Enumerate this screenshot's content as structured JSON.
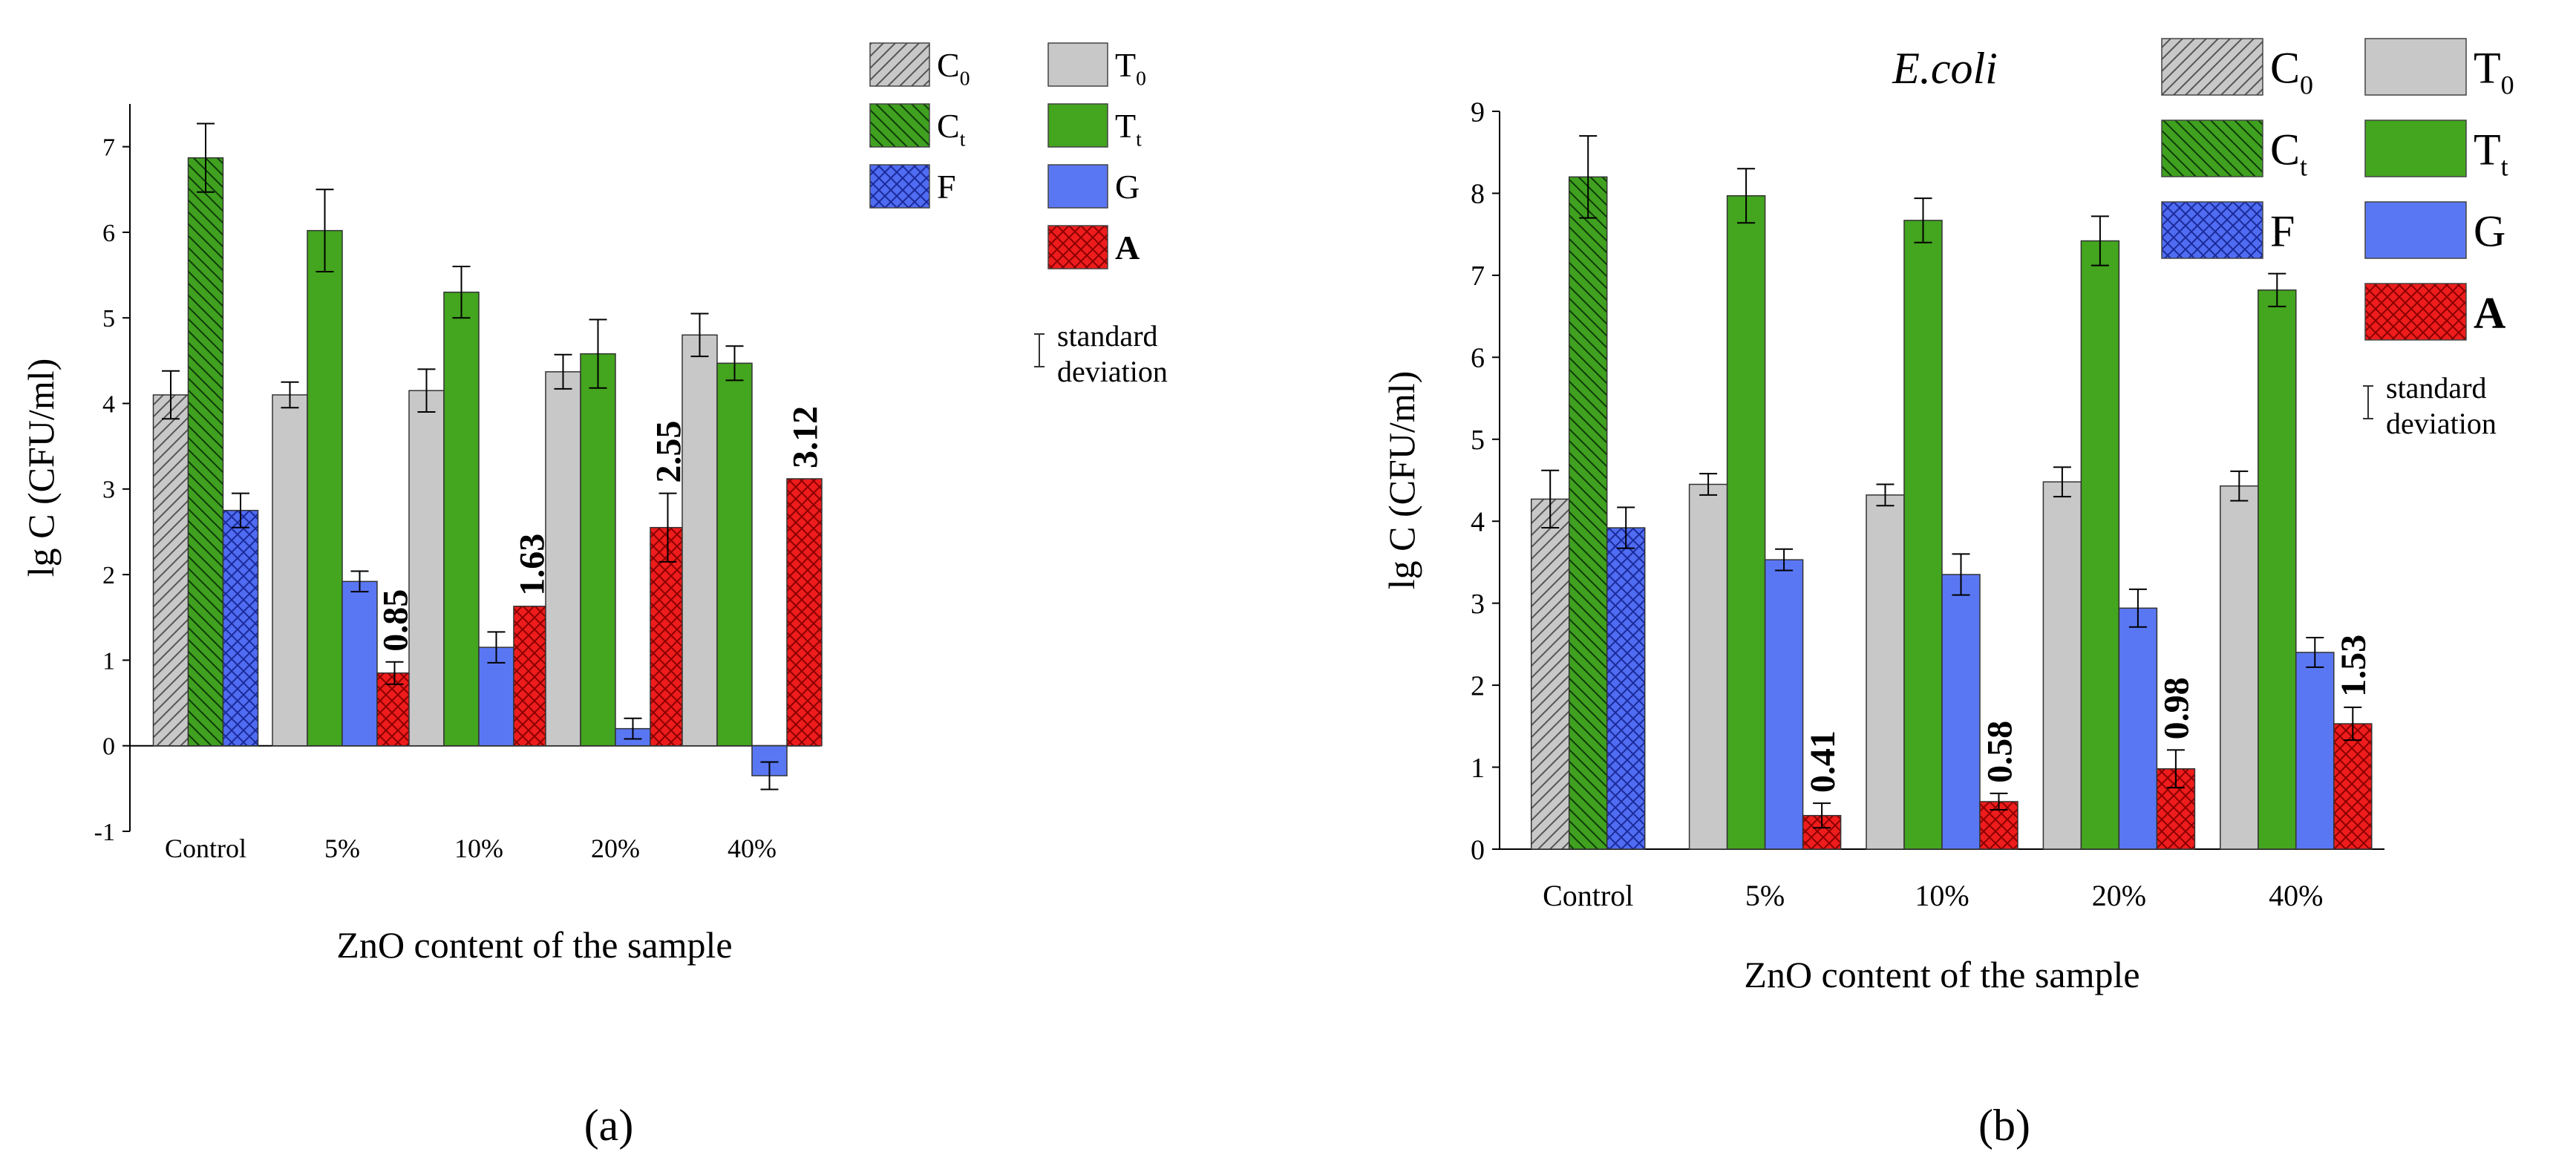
{
  "panels": [
    {
      "panel_label": "(a)",
      "chart_data": {
        "type": "bar",
        "title": "",
        "xlabel": "ZnO content of the sample",
        "ylabel": "lg C (CFU/ml)",
        "ylim": [
          -1,
          7.5
        ],
        "yticks": [
          -1,
          0,
          1,
          2,
          3,
          4,
          5,
          6,
          7
        ],
        "grid": false,
        "legend_position": "top-right",
        "error_bar_label": [
          "standard",
          "deviation"
        ],
        "series_order": [
          "C0",
          "Ct",
          "F",
          "T0",
          "Tt",
          "G",
          "A"
        ],
        "groups": [
          {
            "category": "Control",
            "bars": [
              {
                "series": "C0",
                "value": 4.1,
                "err": 0.28
              },
              {
                "series": "Ct",
                "value": 6.87,
                "err": 0.4
              },
              {
                "series": "F",
                "value": 2.75,
                "err": 0.2
              }
            ]
          },
          {
            "category": "5%",
            "bars": [
              {
                "series": "T0",
                "value": 4.1,
                "err": 0.15
              },
              {
                "series": "Tt",
                "value": 6.02,
                "err": 0.48
              },
              {
                "series": "G",
                "value": 1.92,
                "err": 0.12
              },
              {
                "series": "A",
                "value": 0.85,
                "err": 0.13,
                "label": "0.85"
              }
            ]
          },
          {
            "category": "10%",
            "bars": [
              {
                "series": "T0",
                "value": 4.15,
                "err": 0.25
              },
              {
                "series": "Tt",
                "value": 5.3,
                "err": 0.3
              },
              {
                "series": "G",
                "value": 1.15,
                "err": 0.18
              },
              {
                "series": "A",
                "value": 1.63,
                "err": 0.0,
                "label": "1.63"
              }
            ]
          },
          {
            "category": "20%",
            "bars": [
              {
                "series": "T0",
                "value": 4.37,
                "err": 0.2
              },
              {
                "series": "Tt",
                "value": 4.58,
                "err": 0.4
              },
              {
                "series": "G",
                "value": 0.2,
                "err": 0.12
              },
              {
                "series": "A",
                "value": 2.55,
                "err": 0.4,
                "label": "2.55"
              }
            ]
          },
          {
            "category": "40%",
            "bars": [
              {
                "series": "T0",
                "value": 4.8,
                "err": 0.25
              },
              {
                "series": "Tt",
                "value": 4.47,
                "err": 0.2
              },
              {
                "series": "G",
                "value": -0.35,
                "err": 0.16
              },
              {
                "series": "A",
                "value": 3.12,
                "err": 0.0,
                "label": "3.12"
              }
            ]
          }
        ]
      }
    },
    {
      "panel_label": "(b)",
      "chart_data": {
        "type": "bar",
        "title": "E.coli",
        "xlabel": "ZnO content of the sample",
        "ylabel": "lg C (CFU/ml)",
        "ylim": [
          0,
          9
        ],
        "yticks": [
          0,
          1,
          2,
          3,
          4,
          5,
          6,
          7,
          8,
          9
        ],
        "grid": false,
        "legend_position": "top-right",
        "error_bar_label": [
          "standard",
          "deviation"
        ],
        "series_order": [
          "C0",
          "Ct",
          "F",
          "T0",
          "Tt",
          "G",
          "A"
        ],
        "groups": [
          {
            "category": "Control",
            "bars": [
              {
                "series": "C0",
                "value": 4.27,
                "err": 0.35
              },
              {
                "series": "Ct",
                "value": 8.2,
                "err": 0.5
              },
              {
                "series": "F",
                "value": 3.92,
                "err": 0.25
              }
            ]
          },
          {
            "category": "5%",
            "bars": [
              {
                "series": "T0",
                "value": 4.45,
                "err": 0.13
              },
              {
                "series": "Tt",
                "value": 7.97,
                "err": 0.33
              },
              {
                "series": "G",
                "value": 3.53,
                "err": 0.13
              },
              {
                "series": "A",
                "value": 0.41,
                "err": 0.15,
                "label": "0.41"
              }
            ]
          },
          {
            "category": "10%",
            "bars": [
              {
                "series": "T0",
                "value": 4.32,
                "err": 0.13
              },
              {
                "series": "Tt",
                "value": 7.67,
                "err": 0.27
              },
              {
                "series": "G",
                "value": 3.35,
                "err": 0.25
              },
              {
                "series": "A",
                "value": 0.58,
                "err": 0.1,
                "label": "0.58"
              }
            ]
          },
          {
            "category": "20%",
            "bars": [
              {
                "series": "T0",
                "value": 4.48,
                "err": 0.18
              },
              {
                "series": "Tt",
                "value": 7.42,
                "err": 0.3
              },
              {
                "series": "G",
                "value": 2.94,
                "err": 0.23
              },
              {
                "series": "A",
                "value": 0.98,
                "err": 0.23,
                "label": "0.98"
              }
            ]
          },
          {
            "category": "40%",
            "bars": [
              {
                "series": "T0",
                "value": 4.43,
                "err": 0.18
              },
              {
                "series": "Tt",
                "value": 6.82,
                "err": 0.2
              },
              {
                "series": "G",
                "value": 2.4,
                "err": 0.18
              },
              {
                "series": "A",
                "value": 1.53,
                "err": 0.2,
                "label": "1.53"
              }
            ]
          }
        ]
      }
    }
  ],
  "series_styles": {
    "C0": {
      "legend_main": "C",
      "legend_sub": "0",
      "fill": "#c8c8c8",
      "pattern": "hatch-right",
      "pattern_color": "#555555",
      "legend_bold": false
    },
    "Ct": {
      "legend_main": "C",
      "legend_sub": "t",
      "fill": "#3fa11f",
      "pattern": "hatch-left",
      "pattern_color": "#0f3a08",
      "legend_bold": false
    },
    "F": {
      "legend_main": "F",
      "legend_sub": "",
      "fill": "#4f6cf2",
      "pattern": "crosshatch",
      "pattern_color": "#1b2a99",
      "legend_bold": false
    },
    "T0": {
      "legend_main": "T",
      "legend_sub": "0",
      "fill": "#c8c8c8",
      "pattern": "none",
      "pattern_color": "",
      "legend_bold": false
    },
    "Tt": {
      "legend_main": "T",
      "legend_sub": "t",
      "fill": "#44a51f",
      "pattern": "none",
      "pattern_color": "",
      "legend_bold": false
    },
    "G": {
      "legend_main": "G",
      "legend_sub": "",
      "fill": "#5a77f3",
      "pattern": "none",
      "pattern_color": "",
      "legend_bold": false
    },
    "A": {
      "legend_main": "A",
      "legend_sub": "",
      "fill": "#ee1c1c",
      "pattern": "crosshatch",
      "pattern_color": "#8a0000",
      "legend_bold": true
    }
  }
}
